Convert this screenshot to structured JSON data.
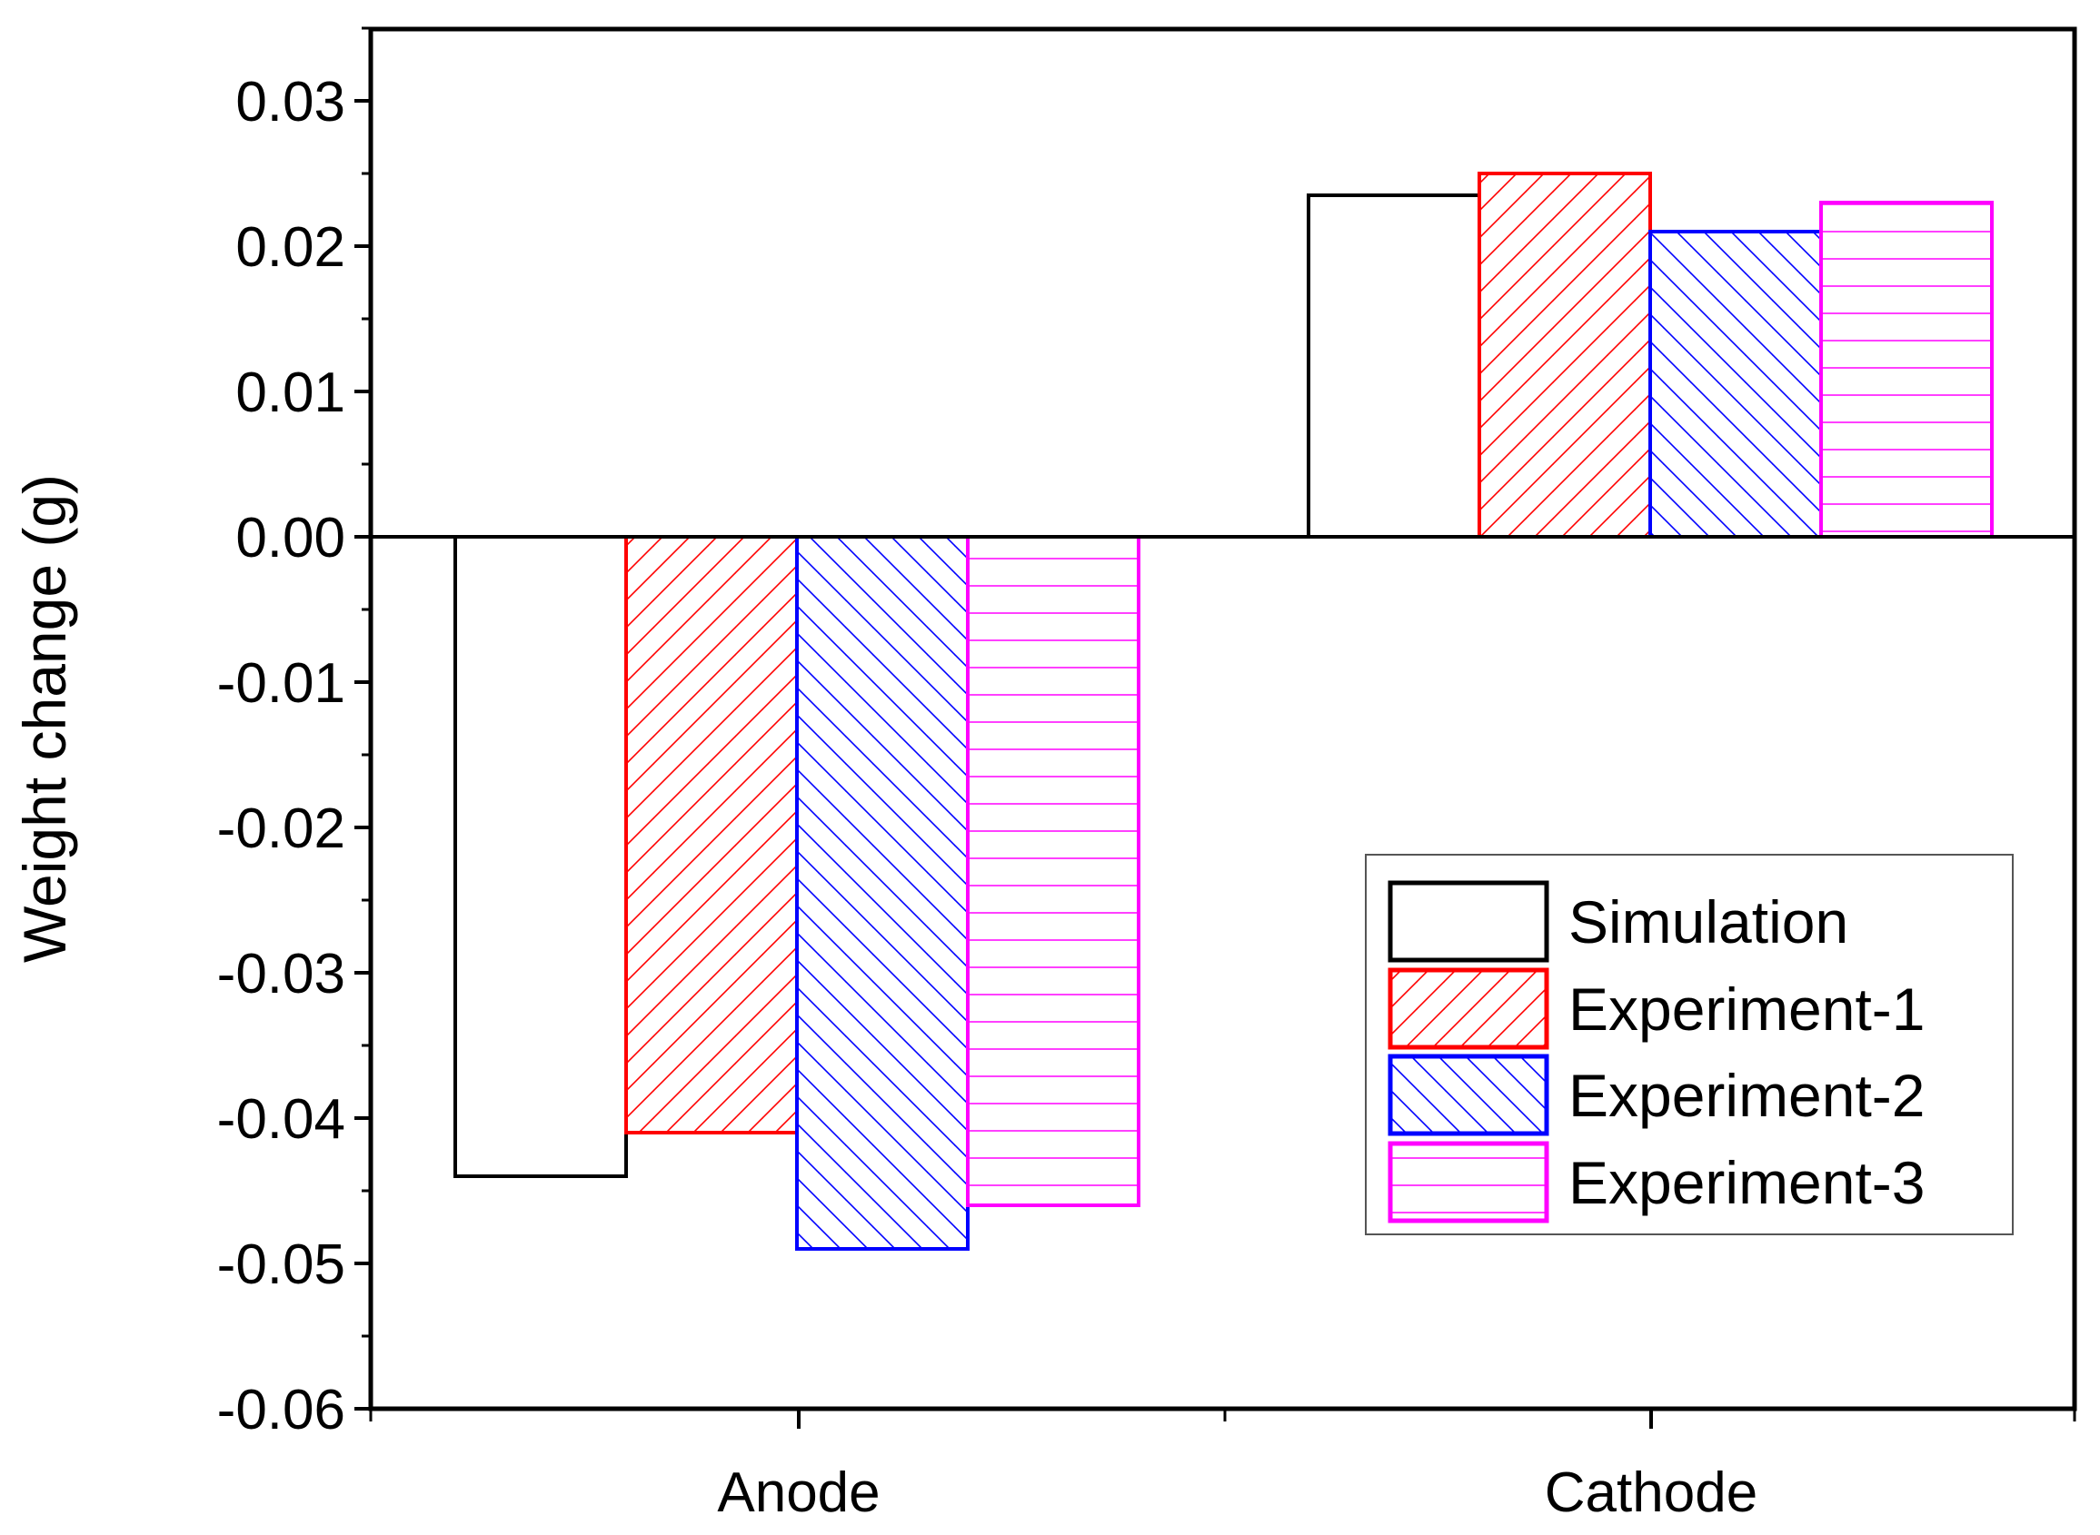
{
  "chart_data": {
    "type": "bar",
    "title": "",
    "xlabel": "",
    "ylabel": "Weight change (g)",
    "categories": [
      "Anode",
      "Cathode"
    ],
    "ylim": [
      -0.06,
      0.035
    ],
    "yticks": [
      0.03,
      0.02,
      0.01,
      0.0,
      -0.01,
      -0.02,
      -0.03,
      -0.04,
      -0.05,
      -0.06
    ],
    "ytick_labels": [
      "0.03",
      "0.02",
      "0.01",
      "0.00",
      "-0.01",
      "-0.02",
      "-0.03",
      "-0.04",
      "-0.05",
      "-0.06"
    ],
    "grid": false,
    "legend_position": "bottom-right",
    "series": [
      {
        "name": "Simulation",
        "values": [
          -0.044,
          0.0235
        ],
        "color": "#000000",
        "pattern": "none"
      },
      {
        "name": "Experiment-1",
        "values": [
          -0.041,
          0.025
        ],
        "color": "#ff0000",
        "pattern": "diag-up"
      },
      {
        "name": "Experiment-2",
        "values": [
          -0.049,
          0.021
        ],
        "color": "#0000ff",
        "pattern": "diag-down"
      },
      {
        "name": "Experiment-3",
        "values": [
          -0.046,
          0.023
        ],
        "color": "#ff00ff",
        "pattern": "horizontal"
      }
    ]
  }
}
